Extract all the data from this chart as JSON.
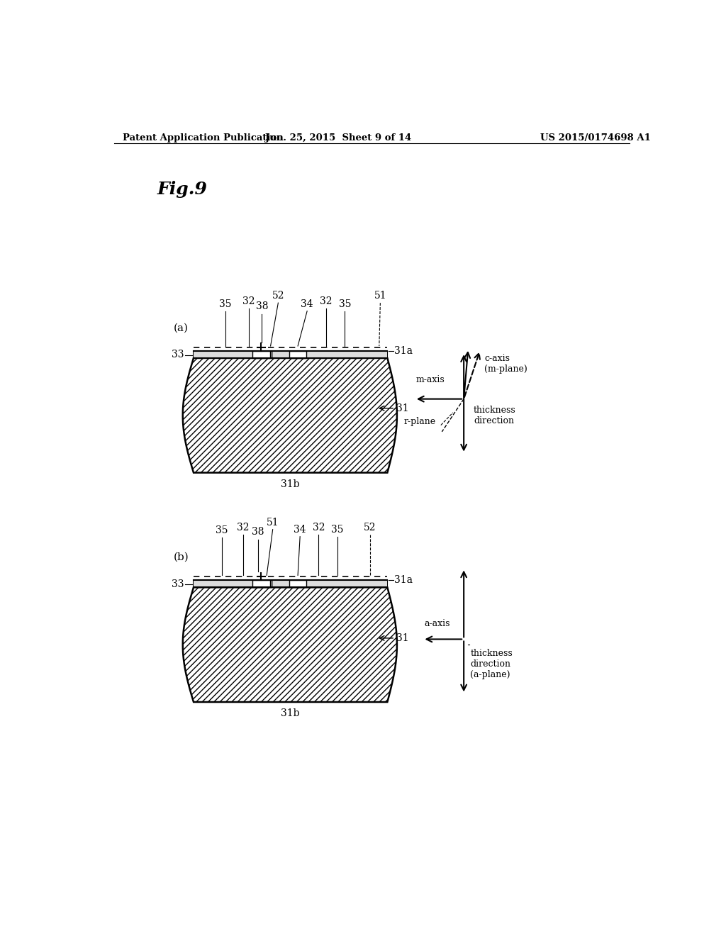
{
  "bg_color": "#ffffff",
  "header_left": "Patent Application Publication",
  "header_mid": "Jun. 25, 2015  Sheet 9 of 14",
  "header_right": "US 2015/0174698 A1",
  "fig_label": "Fig.9"
}
